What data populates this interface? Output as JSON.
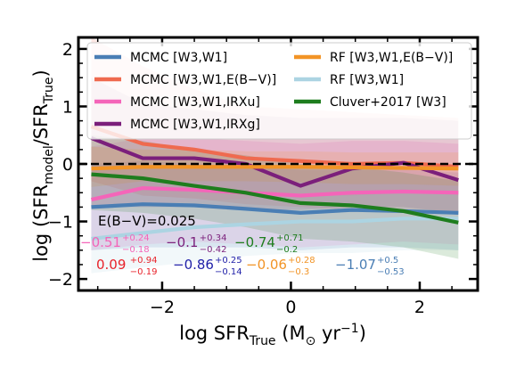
{
  "chart_data": {
    "type": "line",
    "xlabel": "log SFR",
    "xlabel_sub": "True",
    "xlabel_units": "(M",
    "xlabel_units_sub": "⊙",
    "xlabel_units_tail": "yr",
    "xlabel_units_sup": "−1",
    "xlabel_close": ")",
    "ylabel": "log (SFR",
    "ylabel_sub1": "model",
    "ylabel_mid": "/SFR",
    "ylabel_sub2": "True",
    "ylabel_close": ")",
    "xlim": [
      -3.3,
      2.9
    ],
    "ylim": [
      -2.2,
      2.2
    ],
    "xticks": [
      -2,
      0,
      2
    ],
    "xtick_labels": [
      "−2",
      "0",
      "2"
    ],
    "yticks": [
      -2,
      -1,
      0,
      1,
      2
    ],
    "ytick_labels": [
      "−2",
      "−1",
      "0",
      "1",
      "2"
    ],
    "reference_line": 0,
    "x": [
      -3.1,
      -2.3,
      -1.5,
      -0.7,
      0.15,
      0.95,
      1.75,
      2.6
    ],
    "series": [
      {
        "name": "MCMC [W3,W1]",
        "color": "#4a7eb4",
        "values": [
          -0.75,
          -0.7,
          -0.72,
          -0.78,
          -0.85,
          -0.8,
          -0.82,
          -0.85
        ],
        "band_lo": [
          -1.5,
          -1.45,
          -1.45,
          -1.45,
          -1.5,
          -1.45,
          -1.45,
          -1.5
        ],
        "band_hi": [
          0.0,
          0.05,
          0.0,
          -0.05,
          -0.1,
          -0.1,
          -0.1,
          -0.15
        ]
      },
      {
        "name": "MCMC [W3,W1,E(B−V)]",
        "color": "#ef6a4f",
        "values": [
          0.65,
          0.35,
          0.25,
          0.1,
          0.05,
          0.0,
          0.02,
          -0.05
        ],
        "band_lo": [
          -0.3,
          -0.55,
          -0.6,
          -0.7,
          -0.75,
          -0.8,
          -0.8,
          -0.85
        ],
        "band_hi": [
          2.2,
          1.7,
          1.3,
          1.0,
          0.95,
          0.9,
          0.85,
          0.8
        ]
      },
      {
        "name": "MCMC [W3,W1,IRXu]",
        "color": "#f465b9",
        "values": [
          -0.62,
          -0.42,
          -0.45,
          -0.5,
          -0.55,
          -0.5,
          -0.48,
          -0.5
        ],
        "band_lo": [
          -1.5,
          -1.4,
          -1.35,
          -1.4,
          -1.45,
          -1.4,
          -1.35,
          -1.4
        ],
        "band_hi": [
          0.3,
          0.45,
          0.45,
          0.4,
          0.35,
          0.4,
          0.4,
          0.35
        ]
      },
      {
        "name": "MCMC [W3,W1,IRXg]",
        "color": "#7b1f7b",
        "values": [
          0.45,
          0.1,
          0.1,
          0.0,
          -0.38,
          -0.08,
          0.02,
          -0.28
        ],
        "band_lo": [
          -0.75,
          -0.75,
          -0.75,
          -0.8,
          -0.8,
          -0.75,
          -0.75,
          -0.85
        ],
        "band_hi": [
          1.5,
          1.05,
          0.95,
          0.85,
          0.8,
          0.8,
          0.8,
          0.75
        ]
      },
      {
        "name": "RF [W3,W1,E(B−V)]",
        "color": "#f29426",
        "values": [
          -0.08,
          -0.05,
          -0.05,
          -0.05,
          -0.05,
          -0.06,
          -0.07,
          -0.08
        ],
        "band_lo": [
          -0.4,
          -0.3,
          -0.3,
          -0.3,
          -0.32,
          -0.35,
          -0.35,
          -0.38
        ],
        "band_hi": [
          0.3,
          0.25,
          0.25,
          0.22,
          0.22,
          0.2,
          0.2,
          0.2
        ]
      },
      {
        "name": "RF [W3,W1]",
        "color": "#acd4e2",
        "values": [
          -1.3,
          -1.2,
          -1.1,
          -1.05,
          -1.0,
          -1.0,
          -0.95,
          -0.95
        ],
        "band_lo": [
          -1.9,
          -1.8,
          -1.7,
          -1.6,
          -1.55,
          -1.55,
          -1.5,
          -1.5
        ],
        "band_hi": [
          -0.8,
          -0.7,
          -0.65,
          -0.6,
          -0.55,
          -0.55,
          -0.5,
          -0.5
        ]
      },
      {
        "name": "Cluver+2017 [W3]",
        "color": "#1e7d1e",
        "values": [
          -0.18,
          -0.25,
          -0.38,
          -0.5,
          -0.68,
          -0.72,
          -0.82,
          -1.02
        ],
        "band_lo": [
          -0.8,
          -0.85,
          -0.95,
          -1.1,
          -1.3,
          -1.35,
          -1.45,
          -1.65
        ],
        "band_hi": [
          0.5,
          0.4,
          0.25,
          0.15,
          0.0,
          -0.05,
          -0.15,
          -0.3
        ]
      }
    ],
    "legend_position": "top",
    "annotation": "E(B−V)=0.025",
    "stats_row1": [
      {
        "main": "−0.51",
        "up": "+0.24",
        "dn": "−0.18",
        "color": "#f465b9"
      },
      {
        "main": "−0.1",
        "up": "+0.34",
        "dn": "−0.42",
        "color": "#7b1f7b"
      },
      {
        "main": "−0.74",
        "up": "+0.71",
        "dn": "−0.2",
        "color": "#1e7d1e"
      }
    ],
    "stats_row2": [
      {
        "main": "0.09",
        "up": "+0.94",
        "dn": "−0.19",
        "color": "#e8232b"
      },
      {
        "main": "−0.86",
        "up": "+0.25",
        "dn": "−0.14",
        "color": "#1f1fa8"
      },
      {
        "main": "−0.06",
        "up": "+0.28",
        "dn": "−0.3",
        "color": "#f29426"
      },
      {
        "main": "−1.07",
        "up": "+0.5",
        "dn": "−0.53",
        "color": "#4a7eb4"
      }
    ]
  }
}
